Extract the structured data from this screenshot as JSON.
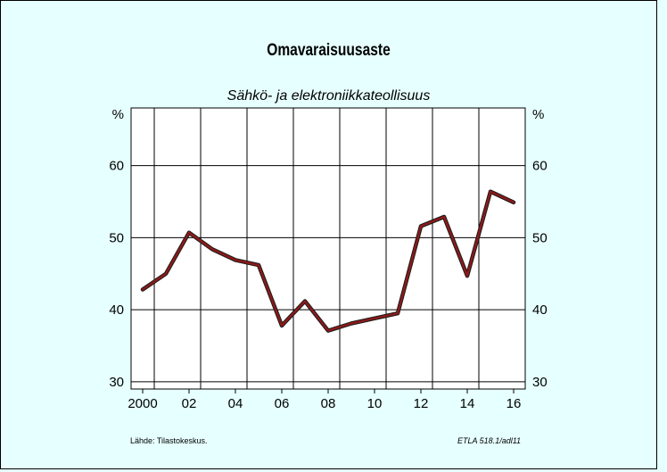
{
  "title": "Omavaraisuusaste",
  "subtitle": "Sähkö- ja elektroniikkateollisuus",
  "source": "Lähde:   Tilastokeskus.",
  "code": "ETLA 518.1/adl11",
  "colors": {
    "background": "#e6ffff",
    "plot_area": "#ffffff",
    "line": "#8b1a1a",
    "line_shadow": "#1a1a1a"
  },
  "chart_data": {
    "type": "line",
    "title": "Omavaraisuusaste",
    "subtitle": "Sähkö- ja elektroniikkateollisuus",
    "xlabel": "",
    "ylabel": "%",
    "ylabel_right": "%",
    "xlim": [
      1999.5,
      2016.5
    ],
    "ylim": [
      29,
      68
    ],
    "y_ticks": [
      30,
      40,
      50,
      60
    ],
    "x_ticks": [
      2000,
      2002,
      2004,
      2006,
      2008,
      2010,
      2012,
      2014,
      2016
    ],
    "x_tick_labels": [
      "2000",
      "02",
      "04",
      "06",
      "08",
      "10",
      "12",
      "14",
      "16"
    ],
    "grid": true,
    "x": [
      2000,
      2001,
      2002,
      2003,
      2004,
      2005,
      2006,
      2007,
      2008,
      2009,
      2010,
      2011,
      2012,
      2013,
      2014,
      2015,
      2016
    ],
    "y": [
      42.8,
      45.0,
      50.7,
      48.4,
      46.9,
      46.2,
      37.8,
      41.2,
      37.1,
      38.1,
      38.8,
      39.5,
      51.6,
      52.9,
      44.7,
      56.4,
      54.9
    ]
  }
}
